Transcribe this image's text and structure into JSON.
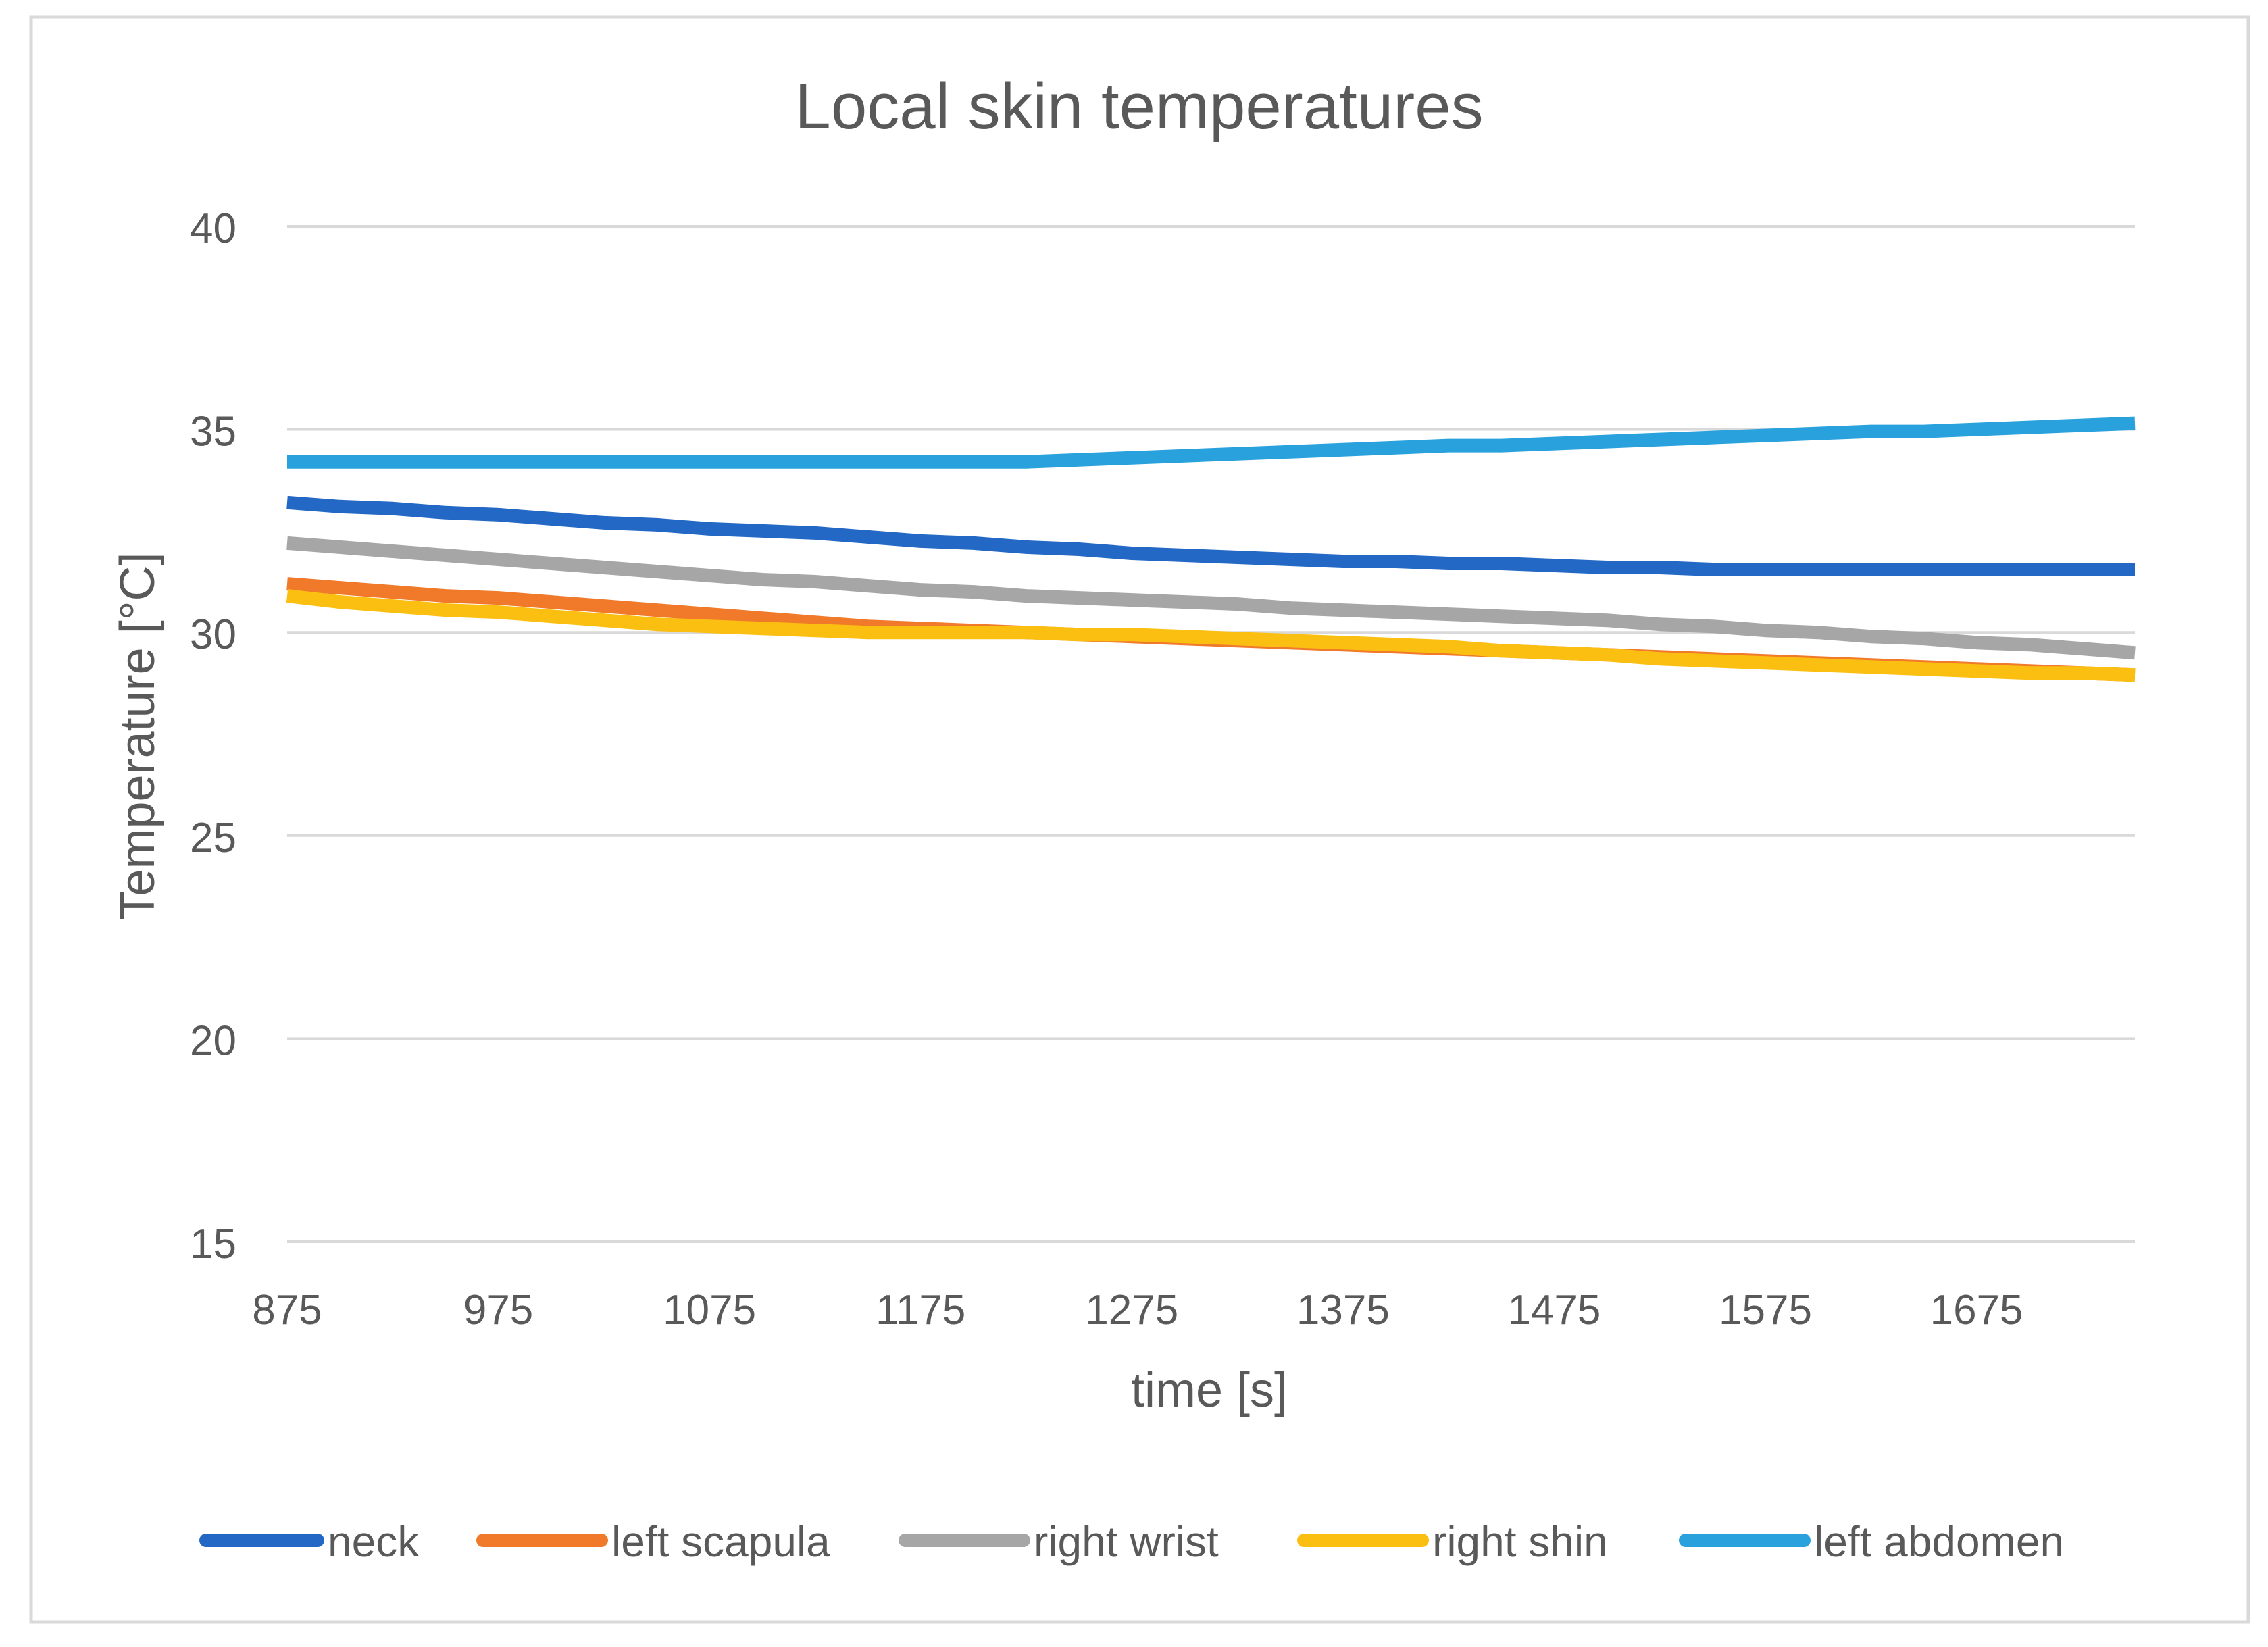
{
  "chart_data": {
    "type": "line",
    "title": "Local skin temperatures",
    "xlabel": "time [s]",
    "ylabel": "Temperature [°C]",
    "xlim": [
      875,
      1750
    ],
    "ylim": [
      15,
      40
    ],
    "x_ticks": [
      875,
      975,
      1075,
      1175,
      1275,
      1375,
      1475,
      1575,
      1675
    ],
    "y_ticks": [
      15,
      20,
      25,
      30,
      35,
      40
    ],
    "grid": true,
    "legend_position": "bottom",
    "x": [
      875,
      900,
      925,
      950,
      975,
      1000,
      1025,
      1050,
      1075,
      1100,
      1125,
      1150,
      1175,
      1200,
      1225,
      1250,
      1275,
      1300,
      1325,
      1350,
      1375,
      1400,
      1425,
      1450,
      1475,
      1500,
      1525,
      1550,
      1575,
      1600,
      1625,
      1650,
      1675,
      1700,
      1725,
      1750
    ],
    "series": [
      {
        "name": "neck",
        "color": "#2368c4",
        "values": [
          33.2,
          33.1,
          33.05,
          32.95,
          32.9,
          32.8,
          32.7,
          32.65,
          32.55,
          32.5,
          32.45,
          32.35,
          32.25,
          32.2,
          32.1,
          32.05,
          31.95,
          31.9,
          31.85,
          31.8,
          31.75,
          31.75,
          31.7,
          31.7,
          31.65,
          31.6,
          31.6,
          31.55,
          31.55,
          31.55,
          31.55,
          31.55,
          31.55,
          31.55,
          31.55,
          31.55
        ]
      },
      {
        "name": "left scapula",
        "color": "#f07a2a",
        "values": [
          31.2,
          31.1,
          31.0,
          30.9,
          30.85,
          30.75,
          30.65,
          30.55,
          30.45,
          30.35,
          30.25,
          30.15,
          30.1,
          30.05,
          30.0,
          29.95,
          29.9,
          29.85,
          29.8,
          29.75,
          29.7,
          29.65,
          29.6,
          29.55,
          29.5,
          29.45,
          29.4,
          29.35,
          29.3,
          29.25,
          29.2,
          29.15,
          29.1,
          29.05,
          29.0,
          28.95
        ]
      },
      {
        "name": "right wrist",
        "color": "#a6a6a6",
        "values": [
          32.2,
          32.1,
          32.0,
          31.9,
          31.8,
          31.7,
          31.6,
          31.5,
          31.4,
          31.3,
          31.25,
          31.15,
          31.05,
          31.0,
          30.9,
          30.85,
          30.8,
          30.75,
          30.7,
          30.6,
          30.55,
          30.5,
          30.45,
          30.4,
          30.35,
          30.3,
          30.2,
          30.15,
          30.05,
          30.0,
          29.9,
          29.85,
          29.75,
          29.7,
          29.6,
          29.5
        ]
      },
      {
        "name": "right shin",
        "color": "#fbbf12",
        "values": [
          30.9,
          30.75,
          30.65,
          30.55,
          30.5,
          30.4,
          30.3,
          30.2,
          30.15,
          30.1,
          30.05,
          30.0,
          30.0,
          30.0,
          30.0,
          29.95,
          29.95,
          29.9,
          29.85,
          29.8,
          29.75,
          29.7,
          29.65,
          29.55,
          29.5,
          29.45,
          29.35,
          29.3,
          29.25,
          29.2,
          29.15,
          29.1,
          29.05,
          29.0,
          29.0,
          28.95
        ]
      },
      {
        "name": "left abdomen",
        "color": "#28a1dc",
        "values": [
          34.2,
          34.2,
          34.2,
          34.2,
          34.2,
          34.2,
          34.2,
          34.2,
          34.2,
          34.2,
          34.2,
          34.2,
          34.2,
          34.2,
          34.2,
          34.25,
          34.3,
          34.35,
          34.4,
          34.45,
          34.5,
          34.55,
          34.6,
          34.6,
          34.65,
          34.7,
          34.75,
          34.8,
          34.85,
          34.9,
          34.95,
          34.95,
          35.0,
          35.05,
          35.1,
          35.15
        ]
      }
    ]
  }
}
